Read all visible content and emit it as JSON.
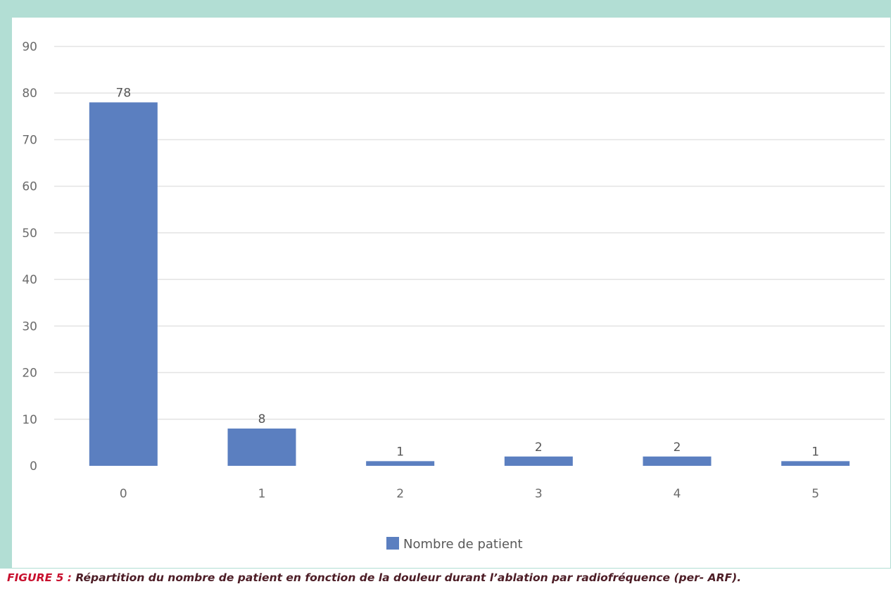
{
  "caption": {
    "label": "FIGURE 5 :",
    "text": " Répartition du nombre de patient en fonction de la douleur durant l’ablation par radiofréquence (per- ARF)."
  },
  "colors": {
    "frame": "#b2ded4",
    "bar": "#5b7fc0",
    "grid": "#e3e3e3",
    "caption_label": "#c8102e",
    "caption_text": "#4d1d26"
  },
  "chart_data": {
    "type": "bar",
    "title": "",
    "xlabel": "",
    "ylabel": "",
    "categories": [
      "0",
      "1",
      "2",
      "3",
      "4",
      "5"
    ],
    "series": [
      {
        "name": "Nombre de patient",
        "values": [
          78,
          8,
          1,
          2,
          2,
          1
        ]
      }
    ],
    "ylim": [
      0,
      90
    ],
    "yticks": [
      0,
      10,
      20,
      30,
      40,
      50,
      60,
      70,
      80,
      90
    ],
    "grid": true,
    "data_labels": true,
    "legend": "bottom"
  }
}
